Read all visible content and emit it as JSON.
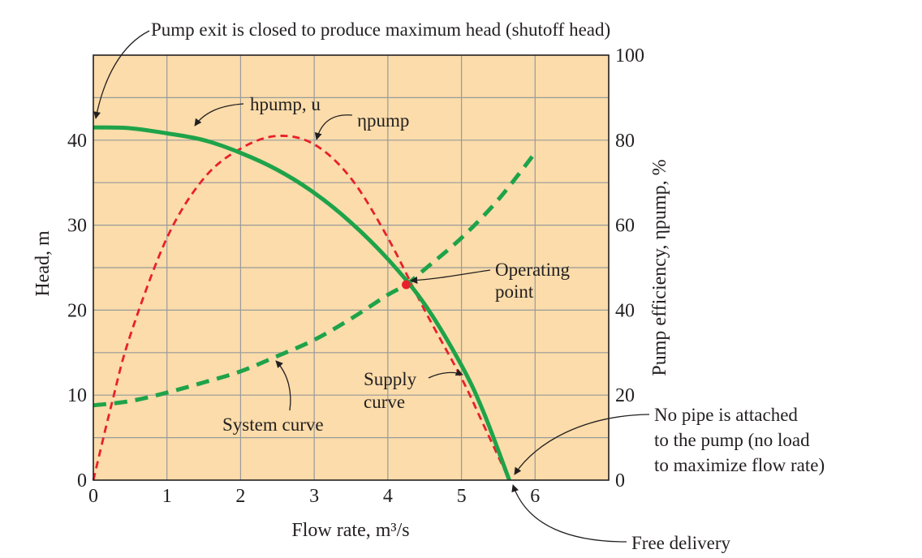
{
  "colors": {
    "plot_background": "#fbdcaa",
    "pump_head_curve": "#1fa34a",
    "system_curve": "#1fa34a",
    "efficiency_curve": "#e8202a",
    "operating_point": "#e8202a",
    "grid": "#9a9a9a"
  },
  "chart_data": {
    "type": "line",
    "xlabel": "Flow rate, m³/s",
    "ylabel": "Head, m",
    "y2label": "Pump efficiency, ηpump, %",
    "xlim": [
      0,
      7
    ],
    "ylim": [
      0,
      50
    ],
    "y2lim": [
      0,
      100
    ],
    "x_ticks": [
      "0",
      "1",
      "2",
      "3",
      "4",
      "5",
      "6"
    ],
    "y_ticks": [
      "0",
      "10",
      "20",
      "30",
      "40"
    ],
    "y2_ticks": [
      "0",
      "20",
      "40",
      "60",
      "80",
      "100"
    ],
    "grid": true,
    "series": [
      {
        "name": "hpump, u",
        "axis": "left",
        "style": "solid",
        "x": [
          0,
          0.5,
          1,
          1.5,
          2,
          2.5,
          3,
          3.5,
          4,
          4.5,
          5,
          5.3,
          5.65
        ],
        "y": [
          41.5,
          41.4,
          40.8,
          40,
          38.5,
          36.5,
          33.8,
          30.3,
          26,
          20.7,
          13.5,
          8,
          0
        ]
      },
      {
        "name": "ηpump",
        "axis": "right",
        "style": "dashed",
        "x": [
          0,
          0.25,
          0.5,
          1,
          1.5,
          2,
          2.5,
          3,
          3.5,
          4,
          4.5,
          5,
          5.3,
          5.65
        ],
        "y": [
          0,
          18,
          34,
          57,
          71,
          78,
          81,
          79,
          71,
          57,
          40,
          24,
          13,
          0
        ]
      },
      {
        "name": "System curve",
        "axis": "left",
        "style": "dashed",
        "x": [
          0,
          0.5,
          1,
          1.5,
          2,
          2.5,
          3,
          3.5,
          4,
          4.25,
          4.5,
          5,
          5.5,
          6
        ],
        "y": [
          8.8,
          9.3,
          10.3,
          11.5,
          12.8,
          14.6,
          16.5,
          19,
          21.8,
          23,
          24.8,
          28.5,
          33,
          38.5
        ]
      }
    ],
    "points": [
      {
        "name": "Operating point",
        "x": 4.25,
        "y": 23
      }
    ],
    "annotations": {
      "shutoff": "Pump exit is closed to produce maximum head (shutoff head)",
      "head_curve_label": "hpump, u",
      "efficiency_curve_label": "ηpump",
      "operating_point_line1": "Operating",
      "operating_point_line2": "point",
      "supply_curve_line1": "Supply",
      "supply_curve_line2": "curve",
      "system_curve": "System curve",
      "no_pipe_line1": "No pipe is attached",
      "no_pipe_line2": "to the pump (no load",
      "no_pipe_line3": "to maximize flow rate)",
      "free_delivery": "Free delivery"
    }
  }
}
